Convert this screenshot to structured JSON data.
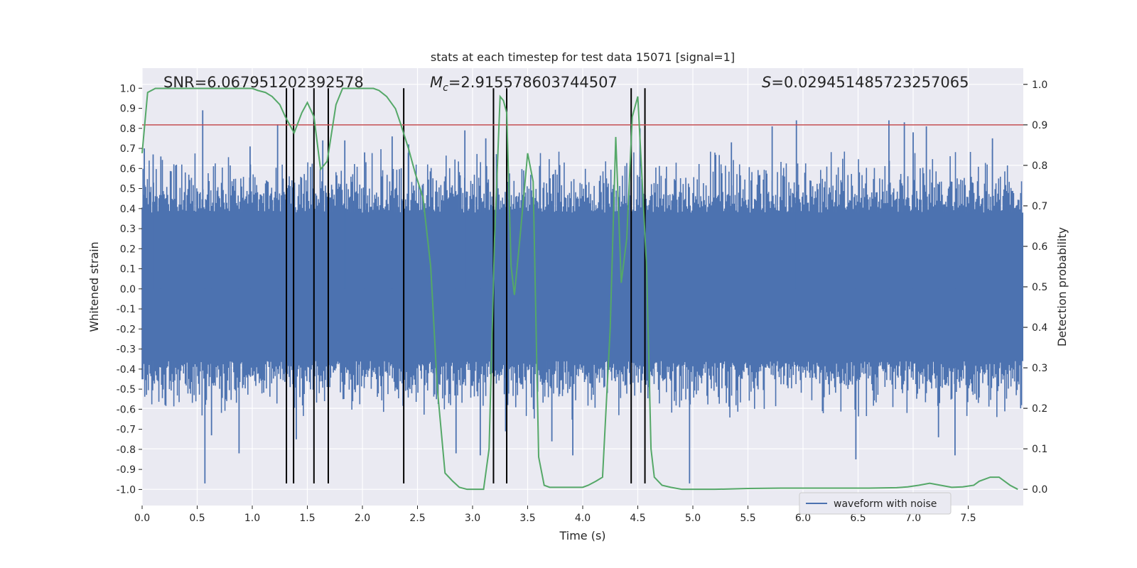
{
  "chart_data": {
    "type": "line",
    "title": "stats at each timestep for test data 15071 [signal=1]",
    "xlabel": "Time (s)",
    "ylabel_left": "Whitened strain",
    "ylabel_right": "Detection probability",
    "xlim": [
      0.0,
      8.0
    ],
    "ylim_left": [
      -1.08,
      1.1
    ],
    "ylim_right": [
      -0.04,
      1.04
    ],
    "x_ticks": [
      "0.0",
      "0.5",
      "1.0",
      "1.5",
      "2.0",
      "2.5",
      "3.0",
      "3.5",
      "4.0",
      "4.5",
      "5.0",
      "5.5",
      "6.0",
      "6.5",
      "7.0",
      "7.5"
    ],
    "x_tick_values": [
      0.0,
      0.5,
      1.0,
      1.5,
      2.0,
      2.5,
      3.0,
      3.5,
      4.0,
      4.5,
      5.0,
      5.5,
      6.0,
      6.5,
      7.0,
      7.5
    ],
    "y_left_ticks": [
      "1.0",
      "0.9",
      "0.8",
      "0.7",
      "0.6",
      "0.5",
      "0.4",
      "0.3",
      "0.2",
      "0.1",
      "0.0",
      "-0.1",
      "-0.2",
      "-0.3",
      "-0.4",
      "-0.5",
      "-0.6",
      "-0.7",
      "-0.8",
      "-0.9",
      "-1.0"
    ],
    "y_left_tick_values": [
      1.0,
      0.9,
      0.8,
      0.7,
      0.6,
      0.5,
      0.4,
      0.3,
      0.2,
      0.1,
      0.0,
      -0.1,
      -0.2,
      -0.3,
      -0.4,
      -0.5,
      -0.6,
      -0.7,
      -0.8,
      -0.9,
      -1.0
    ],
    "y_right_ticks": [
      "1.0",
      "0.9",
      "0.8",
      "0.7",
      "0.6",
      "0.5",
      "0.4",
      "0.3",
      "0.2",
      "0.1",
      "0.0"
    ],
    "y_right_tick_values": [
      1.0,
      0.9,
      0.8,
      0.7,
      0.6,
      0.5,
      0.4,
      0.3,
      0.2,
      0.1,
      0.0
    ],
    "annotations": {
      "snr": "SNR=6.067951202392578",
      "mc_symbol": "M",
      "mc_sub": "c",
      "mc_value": "=2.915578603744507",
      "s_symbol": "S",
      "s_value": "=0.029451485723257065"
    },
    "threshold": {
      "value": 0.9,
      "axis": "right",
      "color": "#c44e52"
    },
    "vertical_lines": [
      1.31,
      1.375,
      1.56,
      1.69,
      2.375,
      3.19,
      3.31,
      4.44,
      4.565
    ],
    "waveform": {
      "name": "waveform with noise",
      "color": "#4c72b0",
      "envelope": [
        0.62,
        -0.58
      ],
      "spikes": [
        [
          0.02,
          0.7
        ],
        [
          0.1,
          0.67
        ],
        [
          0.17,
          0.66
        ],
        [
          0.55,
          0.89
        ],
        [
          0.57,
          -0.97
        ],
        [
          0.63,
          -0.73
        ],
        [
          0.88,
          -0.82
        ],
        [
          0.98,
          0.71
        ],
        [
          1.23,
          0.82
        ],
        [
          1.4,
          -0.75
        ],
        [
          1.64,
          0.74
        ],
        [
          1.84,
          0.74
        ],
        [
          2.02,
          0.68
        ],
        [
          2.27,
          0.76
        ],
        [
          2.42,
          0.72
        ],
        [
          2.85,
          -0.82
        ],
        [
          2.93,
          0.79
        ],
        [
          3.07,
          -0.83
        ],
        [
          3.12,
          0.75
        ],
        [
          3.3,
          -0.71
        ],
        [
          3.72,
          -0.76
        ],
        [
          3.91,
          -0.83
        ],
        [
          4.52,
          0.8
        ],
        [
          4.97,
          -0.97
        ],
        [
          5.35,
          0.73
        ],
        [
          5.72,
          0.81
        ],
        [
          5.94,
          0.84
        ],
        [
          6.48,
          -0.85
        ],
        [
          6.78,
          0.84
        ],
        [
          6.92,
          0.83
        ],
        [
          7.0,
          0.78
        ],
        [
          7.12,
          0.81
        ],
        [
          7.23,
          -0.74
        ],
        [
          7.38,
          -0.83
        ],
        [
          7.72,
          0.75
        ]
      ]
    },
    "detection_probability": {
      "color": "#55a868",
      "x": [
        0.0,
        0.05,
        0.12,
        0.3,
        0.5,
        0.7,
        1.0,
        1.05,
        1.12,
        1.18,
        1.25,
        1.3,
        1.38,
        1.45,
        1.5,
        1.56,
        1.62,
        1.68,
        1.76,
        1.82,
        1.9,
        2.0,
        2.1,
        2.15,
        2.22,
        2.3,
        2.35,
        2.42,
        2.48,
        2.55,
        2.62,
        2.68,
        2.75,
        2.82,
        2.88,
        2.95,
        3.02,
        3.1,
        3.15,
        3.2,
        3.25,
        3.28,
        3.31,
        3.35,
        3.38,
        3.43,
        3.5,
        3.55,
        3.6,
        3.65,
        3.7,
        3.8,
        3.9,
        4.0,
        4.05,
        4.12,
        4.18,
        4.25,
        4.3,
        4.35,
        4.4,
        4.45,
        4.5,
        4.58,
        4.62,
        4.65,
        4.72,
        4.8,
        4.9,
        5.0,
        5.2,
        5.5,
        5.8,
        6.0,
        6.3,
        6.6,
        6.85,
        6.95,
        7.05,
        7.15,
        7.25,
        7.35,
        7.45,
        7.55,
        7.6,
        7.65,
        7.7,
        7.78,
        7.88,
        7.95
      ],
      "y": [
        0.83,
        0.98,
        0.99,
        0.99,
        0.99,
        0.99,
        0.99,
        0.985,
        0.98,
        0.97,
        0.95,
        0.92,
        0.88,
        0.93,
        0.955,
        0.92,
        0.79,
        0.81,
        0.95,
        0.99,
        0.99,
        0.99,
        0.99,
        0.985,
        0.97,
        0.94,
        0.9,
        0.84,
        0.78,
        0.72,
        0.55,
        0.25,
        0.04,
        0.02,
        0.005,
        0.0,
        0.0,
        0.0,
        0.1,
        0.62,
        0.97,
        0.96,
        0.93,
        0.55,
        0.48,
        0.62,
        0.83,
        0.76,
        0.08,
        0.01,
        0.005,
        0.005,
        0.005,
        0.005,
        0.01,
        0.02,
        0.03,
        0.4,
        0.87,
        0.51,
        0.62,
        0.92,
        0.97,
        0.55,
        0.1,
        0.03,
        0.01,
        0.005,
        0.0,
        0.0,
        0.0,
        0.002,
        0.003,
        0.003,
        0.003,
        0.003,
        0.004,
        0.006,
        0.01,
        0.015,
        0.01,
        0.005,
        0.006,
        0.01,
        0.02,
        0.025,
        0.03,
        0.03,
        0.01,
        0.0
      ]
    },
    "legend": {
      "entries": [
        "waveform with noise"
      ],
      "placement": "lower-right"
    }
  }
}
